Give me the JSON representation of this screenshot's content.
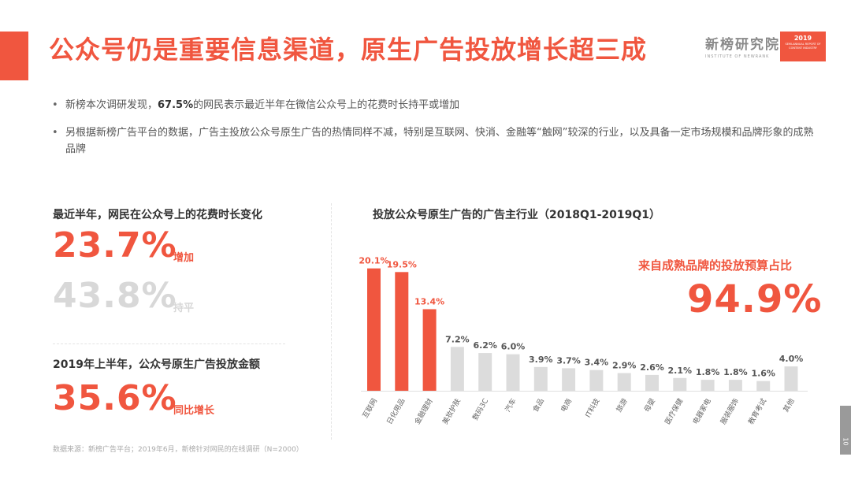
{
  "header": {
    "title": "公众号仍是重要信息渠道，原生广告投放增长超三成",
    "logo_name": "新榜研究院",
    "logo_sub": "INSTITUTE OF NEWRANK",
    "report_year": "2019",
    "report_sub": "SEMI-ANNUAL REPORT OF CONTENT INDUSTRY"
  },
  "bullets": [
    {
      "pre": "新榜本次调研发现，",
      "bold": "67.5%",
      "post": "的网民表示最近半年在微信公众号上的花费时长持平或增加"
    },
    {
      "pre": "另根据新榜广告平台的数据，广告主投放公众号原生广告的热情同样不减，特别是互联网、快消、金融等“触网”较深的行业，以及具备一定市场规模和品牌形象的成熟品牌",
      "bold": "",
      "post": ""
    }
  ],
  "left": {
    "heading1": "最近半年，网民在公众号上的花费时长变化",
    "stat1_value": "23.7%",
    "stat1_label": "增加",
    "stat2_value": "43.8%",
    "stat2_label": "持平",
    "heading2": "2019年上半年，公众号原生广告投放金额",
    "stat3_value": "35.6%",
    "stat3_label": "同比增长"
  },
  "right": {
    "callout_label": "来自成熟品牌的投放预算占比",
    "callout_value": "94.9%"
  },
  "source": "数据来源：新榜广告平台；2019年6月，新榜针对网民的在线调研（N=2000）",
  "page_number": "10",
  "colors": {
    "accent": "#f0563f",
    "bar_grey": "#dcdcdc",
    "muted": "#d8d8d8"
  },
  "chart_data": {
    "type": "bar",
    "title": "投放公众号原生广告的广告主行业（2018Q1-2019Q1）",
    "categories": [
      "互联网",
      "日化用品",
      "金融理财",
      "美妆护肤",
      "数码3C",
      "汽车",
      "食品",
      "电商",
      "IT科技",
      "旅游",
      "母婴",
      "医疗保健",
      "电器家电",
      "服装服饰",
      "教育考试",
      "其他"
    ],
    "values": [
      20.1,
      19.5,
      13.4,
      7.2,
      6.2,
      6.0,
      3.9,
      3.7,
      3.4,
      2.9,
      2.6,
      2.1,
      1.8,
      1.8,
      1.6,
      4.0
    ],
    "value_labels": [
      "20.1%",
      "19.5%",
      "13.4%",
      "7.2%",
      "6.2%",
      "6.0%",
      "3.9%",
      "3.7%",
      "3.4%",
      "2.9%",
      "2.6%",
      "2.1%",
      "1.8%",
      "1.8%",
      "1.6%",
      "4.0%"
    ],
    "highlight_count": 3,
    "ylim": [
      0,
      22
    ],
    "grid": false,
    "legend": "none"
  }
}
